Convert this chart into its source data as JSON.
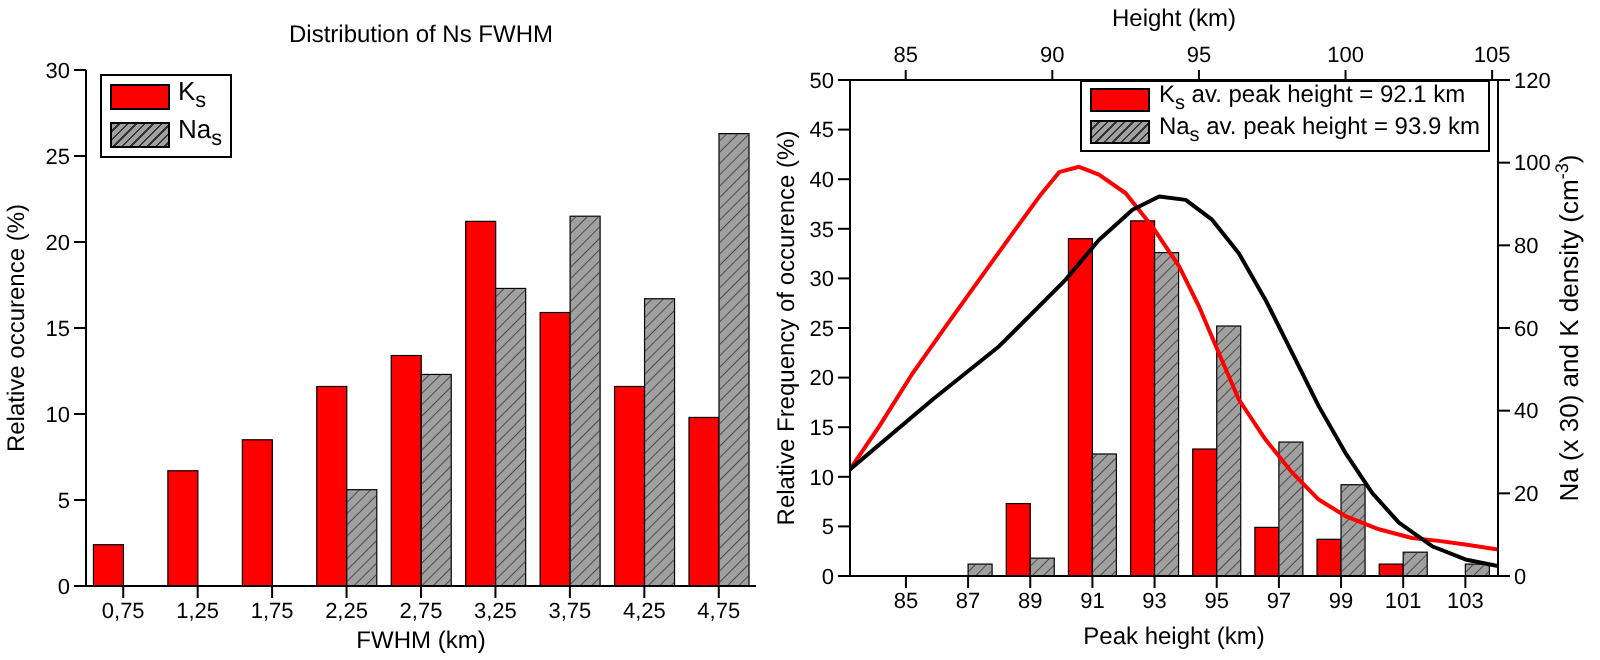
{
  "chart_data": [
    {
      "type": "bar",
      "title": "Distribution of Ns FWHM",
      "xlabel": "FWHM (km)",
      "ylabel": "Relative occurence (%)",
      "categories": [
        "0,75",
        "1,25",
        "1,75",
        "2,25",
        "2,75",
        "3,25",
        "3,75",
        "4,25",
        "4,75"
      ],
      "series": [
        {
          "name": "K$_{s}$",
          "color": "#ff0000",
          "values": [
            2.4,
            6.7,
            8.5,
            11.6,
            13.4,
            21.2,
            15.9,
            11.6,
            9.8
          ]
        },
        {
          "name": "Na$_{s}$",
          "color": "#a0a0a0",
          "values": [
            null,
            null,
            null,
            5.6,
            12.3,
            17.3,
            21.5,
            16.7,
            26.3
          ]
        }
      ],
      "ylim": [
        0,
        30
      ],
      "yticks": [
        0,
        5,
        10,
        15,
        20,
        25,
        30
      ],
      "legend": "top left"
    },
    {
      "type": "bar",
      "xlabel": "Peak height (km)",
      "ylabel": "Relative Frequency of occurence (%)",
      "y2label": "Na (x 30) and K density (cm$^{-3}$)",
      "x2label": "Height (km)",
      "x": [
        87,
        89,
        91,
        93,
        95,
        97,
        99,
        101,
        103
      ],
      "xlim": [
        83.2,
        104.05
      ],
      "xticks": [
        85,
        87,
        89,
        91,
        93,
        95,
        97,
        99,
        101,
        103
      ],
      "series": [
        {
          "name": "K$_{s}$ av. peak height = 92.1 km",
          "color": "#ff0000",
          "values": [
            null,
            7.3,
            34,
            35.8,
            12.8,
            4.9,
            3.7,
            1.2,
            null
          ]
        },
        {
          "name": "Na$_{s}$ av. peak height = 93.9 km",
          "color": "#a0a0a0",
          "values": [
            1.2,
            1.8,
            12.3,
            32.6,
            25.2,
            13.5,
            9.2,
            2.4,
            1.2
          ]
        },
        {
          "type": "line",
          "axis": "y2",
          "color": "#ff0000",
          "x": [
            83.2,
            84.14,
            85.22,
            86.28,
            87.36,
            88.43,
            89.29,
            89.93,
            90.57,
            91.21,
            92.07,
            92.93,
            93.79,
            94.43,
            95.07,
            95.71,
            96.57,
            97.43,
            98.28,
            99.14,
            100.22,
            101.28,
            102.14,
            103.0,
            104.05
          ],
          "values": [
            25.8,
            36.2,
            49.1,
            60.4,
            71.7,
            82.9,
            91.8,
            97.7,
            99.0,
            97.1,
            92.6,
            84.5,
            74.9,
            65.2,
            53.9,
            42.7,
            33.0,
            25.0,
            18.5,
            14.5,
            11.3,
            9.2,
            8.5,
            7.6,
            6.4
          ]
        },
        {
          "type": "line",
          "axis": "y2",
          "color": "#000000",
          "x": [
            83.2,
            85.86,
            88.0,
            90.14,
            91.21,
            92.29,
            93.15,
            94.0,
            94.85,
            95.71,
            96.57,
            97.43,
            98.28,
            99.14,
            100.0,
            100.86,
            101.93,
            103.0,
            104.05
          ],
          "values": [
            25.8,
            42.7,
            55.6,
            71.7,
            81.3,
            88.6,
            91.8,
            91.0,
            86.2,
            78.1,
            66.8,
            53.9,
            41.1,
            29.8,
            20.1,
            12.9,
            7.2,
            4.0,
            2.4
          ]
        }
      ],
      "ylim": [
        0,
        50
      ],
      "yticks": [
        0,
        5,
        10,
        15,
        20,
        25,
        30,
        35,
        40,
        45,
        50
      ],
      "y2lim": [
        0,
        120
      ],
      "y2ticks": [
        0,
        20,
        40,
        60,
        80,
        100,
        120
      ],
      "x2lim": [
        83.1,
        105.2
      ],
      "x2ticks": [
        85,
        90,
        95,
        100,
        105
      ],
      "legend": "top right",
      "marker": "none",
      "line_style": "solid"
    }
  ]
}
